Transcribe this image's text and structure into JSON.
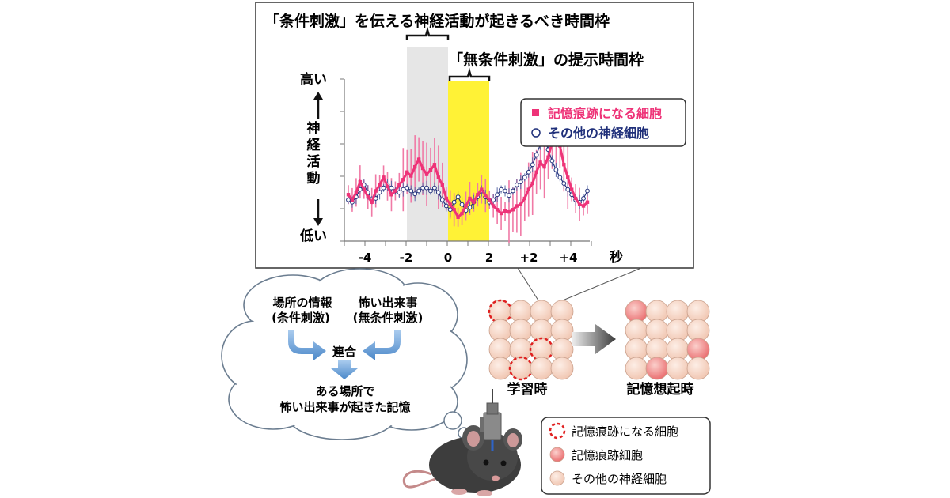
{
  "chart_panel": {
    "title_conditioned_window": "「条件刺激」を伝える神経活動が起きるべき時間枠",
    "title_unconditioned_window": "「無条件刺激」の提示時間枠",
    "y_high": "高い",
    "y_low": "低い",
    "y_label": "神経活動",
    "x_unit": "秒",
    "legend": [
      {
        "label": "記憶痕跡になる細胞",
        "color": "#ee3378",
        "marker": "square"
      },
      {
        "label": "その他の神経細胞",
        "color": "#1f2f7a",
        "marker": "circle"
      }
    ],
    "gray_window": [
      -2,
      0
    ],
    "yellow_window": [
      0,
      2
    ]
  },
  "chart_data": {
    "type": "line",
    "x_tick_labels": [
      "-4",
      "-2",
      "0",
      "2",
      "+2",
      "+4"
    ],
    "series": [
      {
        "name": "記憶痕跡になる細胞",
        "values": [
          0.25,
          0.18,
          0.28,
          0.42,
          0.32,
          0.22,
          0.15,
          0.3,
          0.38,
          0.48,
          0.36,
          0.25,
          0.3,
          0.38,
          0.45,
          0.55,
          0.5,
          0.62,
          0.72,
          0.6,
          0.52,
          0.58,
          0.65,
          0.48,
          0.38,
          0.2,
          0.12,
          0.05,
          -0.05,
          0.0,
          0.1,
          0.2,
          0.15,
          0.25,
          0.32,
          0.24,
          0.18,
          0.1,
          0.05,
          0.0,
          0.03,
          0.02,
          0.05,
          0.1,
          0.12,
          0.2,
          0.32,
          0.4,
          0.55,
          0.68,
          0.62,
          0.75,
          0.95,
          1.05,
          0.9,
          0.65,
          0.48,
          0.32,
          0.2,
          0.12,
          0.1,
          0.15
        ]
      },
      {
        "name": "その他の神経細胞",
        "values": [
          0.18,
          0.15,
          0.22,
          0.32,
          0.38,
          0.28,
          0.18,
          0.2,
          0.28,
          0.34,
          0.38,
          0.34,
          0.3,
          0.28,
          0.32,
          0.34,
          0.3,
          0.26,
          0.3,
          0.34,
          0.34,
          0.3,
          0.34,
          0.28,
          0.18,
          0.1,
          0.05,
          0.15,
          0.22,
          0.12,
          0.04,
          0.08,
          0.15,
          0.22,
          0.3,
          0.22,
          0.15,
          0.18,
          0.25,
          0.32,
          0.3,
          0.24,
          0.3,
          0.38,
          0.42,
          0.48,
          0.55,
          0.65,
          0.78,
          0.92,
          1.0,
          0.85,
          0.7,
          0.58,
          0.48,
          0.4,
          0.32,
          0.25,
          0.18,
          0.15,
          0.2,
          0.3
        ]
      }
    ]
  },
  "concept_cloud": {
    "left_info": [
      "場所の情報",
      "(条件刺激)"
    ],
    "right_info": [
      "怖い出来事",
      "(無条件刺激)"
    ],
    "association": "連合",
    "memory": [
      "ある場所で",
      "怖い出来事が起きた記憶"
    ]
  },
  "cell_groups": {
    "learning_label": "学習時",
    "recall_label": "記憶想起時"
  },
  "cell_legend": [
    {
      "label": "記憶痕跡になる細胞"
    },
    {
      "label": "記憶痕跡細胞"
    },
    {
      "label": "その他の神経細胞"
    }
  ],
  "colors": {
    "pink": "#ee3378",
    "navy": "#1f2f7a",
    "highlight_yellow": "#fff236",
    "window_gray": "#e6e6e6",
    "cell_fill": "#f7d9cb",
    "arrow_blue": "#5b9bd5",
    "dashed_red": "#e02020"
  }
}
